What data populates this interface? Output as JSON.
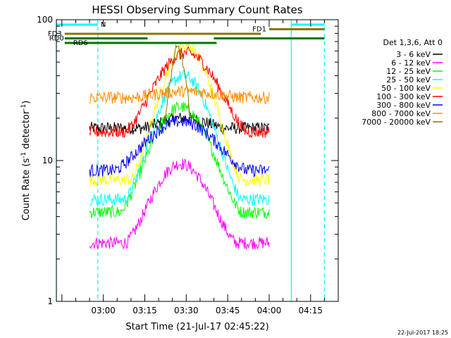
{
  "chart_data": {
    "type": "line",
    "title": "HESSI Observing Summary Count Rates",
    "xlabel": "Start Time (21-Jul-17 02:45:22)",
    "ylabel": "Count Rate (s⁻¹ detector⁻¹)",
    "ylabel_main": "Count Rate (s",
    "ylabel_exp": "-1",
    "ylabel_mid": " detector",
    "ylabel_tail": ")",
    "log_y": true,
    "ylim": [
      1,
      100
    ],
    "xlim_minutes": [
      -17,
      85
    ],
    "x_ticks": [
      {
        "label": "03:00",
        "minutes": 0
      },
      {
        "label": "03:15",
        "minutes": 15
      },
      {
        "label": "03:30",
        "minutes": 30
      },
      {
        "label": "03:45",
        "minutes": 45
      },
      {
        "label": "04:00",
        "minutes": 60
      },
      {
        "label": "04:15",
        "minutes": 75
      }
    ],
    "y_ticks": [
      {
        "label": "1",
        "value": 1
      },
      {
        "label": "10",
        "value": 10
      },
      {
        "label": "100",
        "value": 100
      }
    ],
    "legend_title": "Det 1,3,6, Att 0",
    "legend_position": "right",
    "grid": false,
    "series": [
      {
        "name": "3 - 6 keV",
        "color": "#000000",
        "baseline": 17,
        "peak": 20,
        "peak_start": 14,
        "peak_end": 44,
        "x_start": -5,
        "x_end": 60
      },
      {
        "name": "6 - 12 keV",
        "color": "#ff00ff",
        "baseline": 2.6,
        "peak": 9.5,
        "peak_start": 8,
        "peak_end": 48,
        "x_start": -5,
        "x_end": 60
      },
      {
        "name": "12 - 25 keV",
        "color": "#00ff00",
        "baseline": 4.3,
        "peak": 24,
        "peak_start": 6,
        "peak_end": 50,
        "x_start": -5,
        "x_end": 60
      },
      {
        "name": "25 - 50 keV",
        "color": "#00ffff",
        "baseline": 5.3,
        "peak": 40,
        "peak_start": 8,
        "peak_end": 50,
        "x_start": -5,
        "x_end": 60
      },
      {
        "name": "50 - 100 keV",
        "color": "#ffff00",
        "baseline": 7.3,
        "peak": 65,
        "peak_start": 10,
        "peak_end": 50,
        "x_start": -5,
        "x_end": 60
      },
      {
        "name": "100 - 300 keV",
        "color": "#ff0000",
        "baseline": 16,
        "peak": 58,
        "peak_start": 8,
        "peak_end": 52,
        "x_start": -5,
        "x_end": 60
      },
      {
        "name": "300 - 800 keV",
        "color": "#0000ff",
        "baseline": 8.5,
        "peak": 19,
        "peak_start": 4,
        "peak_end": 52,
        "x_start": -5,
        "x_end": 60
      },
      {
        "name": "800 - 7000 keV",
        "color": "#ff8c00",
        "baseline": 28,
        "peak": 31,
        "peak_start": 10,
        "peak_end": 50,
        "x_start": -5,
        "x_end": 60
      },
      {
        "name": "7000 - 20000 keV",
        "color": "#8b7500",
        "baseline": null,
        "peak": 62,
        "peak_start": 22,
        "peak_end": 32,
        "x_start": 22,
        "x_end": 32
      }
    ],
    "status_bars": [
      {
        "label": "N",
        "color": "#00ffff",
        "x_start": -17,
        "x_end": -2,
        "level": 1
      },
      {
        "label": "",
        "color": "#00ffff",
        "x_start": 68,
        "x_end": 80,
        "level": 1
      },
      {
        "label": "FD1",
        "color": "#8b7500",
        "x_start": 60,
        "x_end": 80,
        "level": 2
      },
      {
        "label": "FD3",
        "color": "#8b7500",
        "x_start": -14,
        "x_end": 57,
        "level": 3
      },
      {
        "label": "RD0",
        "color": "#007700",
        "x_start": -14,
        "x_end": 16,
        "level": 4
      },
      {
        "label": "",
        "color": "#007700",
        "x_start": 40,
        "x_end": 80,
        "level": 4
      },
      {
        "label": "RD6",
        "color": "#007700",
        "x_start": -14,
        "x_end": 41,
        "level": 5
      }
    ],
    "vertical_markers": [
      {
        "minutes": -17,
        "style": "solid",
        "color": "#00ffff"
      },
      {
        "minutes": -2,
        "style": "dashed",
        "color": "#00ffff"
      },
      {
        "minutes": 68,
        "style": "solid",
        "color": "#00ffff"
      },
      {
        "minutes": 80,
        "style": "dashed",
        "color": "#00ffff"
      }
    ]
  },
  "footer_timestamp": "22-Jul-2017 18:25"
}
